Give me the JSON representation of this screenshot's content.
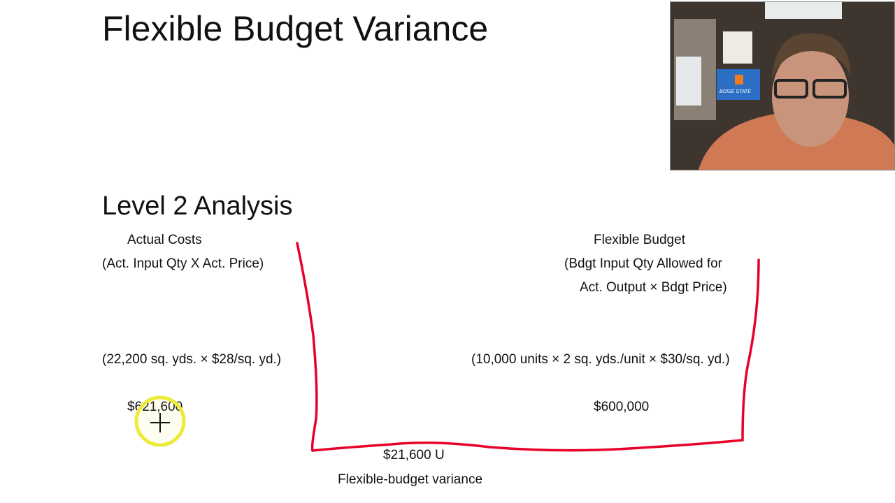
{
  "slide": {
    "title": "Flexible Budget Variance",
    "subtitle": "Level 2 Analysis",
    "actual": {
      "heading": "Actual Costs",
      "formula": "(Act. Input Qty X Act. Price)",
      "calc": "(22,200 sq. yds. × $28/sq. yd.)",
      "amount": "$621,600"
    },
    "flexible": {
      "heading": "Flexible Budget",
      "formula_line1": "(Bdgt Input Qty Allowed for",
      "formula_line2": "Act. Output × Bdgt Price)",
      "calc": "(10,000 units × 2 sq. yds./unit × $30/sq. yd.)",
      "amount": "$600,000"
    },
    "variance": {
      "amount": "$21,600 U",
      "label": "Flexible-budget variance"
    }
  },
  "annotation": {
    "ink_color": "#e8002a",
    "cursor_highlight_color": "#f0ec3a"
  },
  "webcam": {
    "flag_text": "BOISE STATE"
  }
}
